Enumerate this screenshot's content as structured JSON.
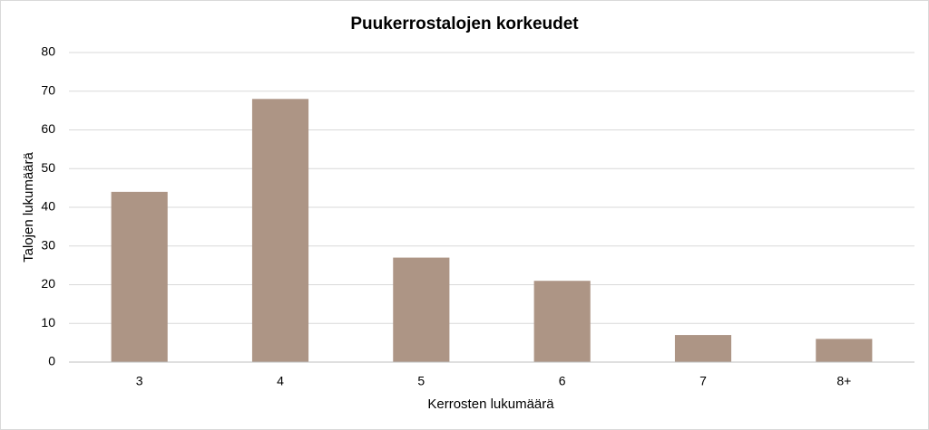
{
  "chart_data": {
    "type": "bar",
    "title": "Puukerrostalojen korkeudet",
    "x_label": "Kerrosten lukumäärä",
    "y_label": "Talojen lukumäärä",
    "categories": [
      "3",
      "4",
      "5",
      "6",
      "7",
      "8+"
    ],
    "values": [
      44,
      68,
      27,
      21,
      7,
      6
    ],
    "color": "#ad9585",
    "ylim": [
      0,
      80
    ],
    "yticks": [
      0,
      10,
      20,
      30,
      40,
      50,
      60,
      70,
      80
    ],
    "grid": true
  }
}
